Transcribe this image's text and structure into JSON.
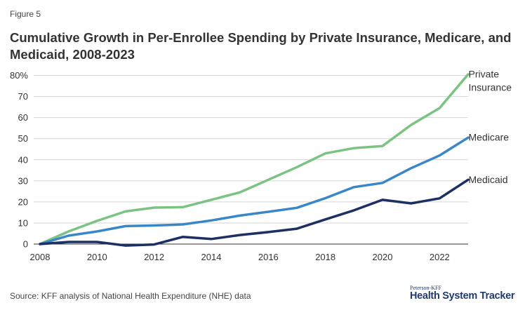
{
  "figure_label": "Figure 5",
  "source": "Source: KFF analysis of National Health Expenditure (NHE) data",
  "brand": {
    "small": "Peterson-KFF",
    "big": "Health System Tracker"
  },
  "chart_data": {
    "type": "line",
    "title": "Cumulative Growth in Per-Enrollee Spending by Private Insurance, Medicare, and Medicaid, 2008-2023",
    "xlabel": "",
    "ylabel": "",
    "x": [
      2008,
      2009,
      2010,
      2011,
      2012,
      2013,
      2014,
      2015,
      2016,
      2017,
      2018,
      2019,
      2020,
      2021,
      2022,
      2023
    ],
    "xlim": [
      2008,
      2023
    ],
    "ylim": [
      0,
      80
    ],
    "x_ticks": [
      2008,
      2010,
      2012,
      2014,
      2016,
      2018,
      2020,
      2022
    ],
    "y_ticks": [
      0,
      10,
      20,
      30,
      40,
      50,
      60,
      70,
      80
    ],
    "y_tick_labels": [
      "0",
      "10",
      "20",
      "30",
      "40",
      "50",
      "60",
      "70",
      "80%"
    ],
    "grid": true,
    "legend": "direct labels at line ends (right)",
    "series": [
      {
        "name": "Private Insurance",
        "label_lines": [
          "Private",
          "Insurance"
        ],
        "color": "#7cc383",
        "values": [
          0,
          6,
          11,
          15.5,
          17.3,
          17.5,
          21,
          24.5,
          30.5,
          36.5,
          43,
          45.5,
          46.5,
          56.5,
          64.5,
          80.5
        ]
      },
      {
        "name": "Medicare",
        "label_lines": [
          "Medicare"
        ],
        "color": "#3a87c8",
        "values": [
          0,
          4,
          6,
          8.5,
          8.8,
          9.3,
          11.2,
          13.5,
          15.3,
          17.2,
          21.8,
          27,
          29,
          36,
          42,
          50.5
        ]
      },
      {
        "name": "Medicaid",
        "label_lines": [
          "Medicaid"
        ],
        "color": "#1d2f63",
        "values": [
          0,
          1,
          1,
          -0.7,
          -0.2,
          3.4,
          2.4,
          4.3,
          5.7,
          7.3,
          11.7,
          16,
          21,
          19.3,
          21.7,
          30.5
        ]
      }
    ]
  }
}
